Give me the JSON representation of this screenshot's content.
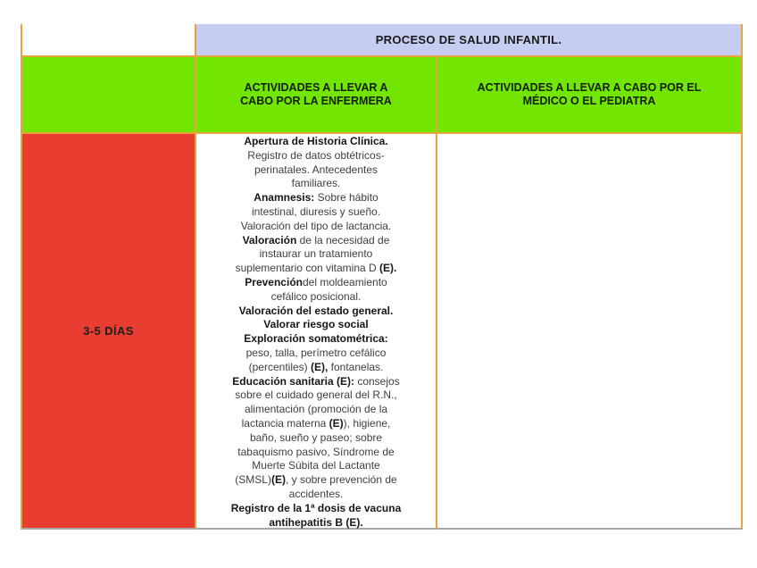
{
  "colors": {
    "table_border": "#e8a43c",
    "bottom_border": "#a8a8a8",
    "title_bg": "#c7cdf0",
    "subheader_bg": "#72e502",
    "row_label_bg": "#e83d30",
    "body_text": "#3e3e3e",
    "bold_text": "#161616"
  },
  "header": {
    "title": "PROCESO DE SALUD INFANTIL."
  },
  "columns": {
    "nurse_label": "ACTIVIDADES A LLEVAR A\nCABO POR LA ENFERMERA",
    "doctor_label": "ACTIVIDADES A LLEVAR A CABO POR EL\nMÉDICO O EL PEDIATRA"
  },
  "row": {
    "age_label": "3-5 DÍAS",
    "nurse_lines": [
      [
        {
          "t": "Apertura de Historia Clínica.",
          "b": true
        }
      ],
      [
        {
          "t": "Registro de datos obtétricos-",
          "b": false
        }
      ],
      [
        {
          "t": "perinatales. Antecedentes",
          "b": false
        }
      ],
      [
        {
          "t": "familiares.",
          "b": false
        }
      ],
      [
        {
          "t": "Anamnesis:",
          "b": true
        },
        {
          "t": " Sobre hábito",
          "b": false
        }
      ],
      [
        {
          "t": "intestinal, diuresis y sueño.",
          "b": false
        }
      ],
      [
        {
          "t": "Valoración del tipo de lactancia.",
          "b": false
        }
      ],
      [
        {
          "t": "Valoración",
          "b": true
        },
        {
          "t": " de la necesidad de",
          "b": false
        }
      ],
      [
        {
          "t": "instaurar un tratamiento",
          "b": false
        }
      ],
      [
        {
          "t": "suplementario con vitamina D ",
          "b": false
        },
        {
          "t": "(E).",
          "b": true
        }
      ],
      [
        {
          "t": "Prevención",
          "b": true
        },
        {
          "t": "del moldeamiento",
          "b": false
        }
      ],
      [
        {
          "t": "cefálico posicional.",
          "b": false
        }
      ],
      [
        {
          "t": "Valoración del estado general.",
          "b": true
        }
      ],
      [
        {
          "t": "Valorar riesgo social",
          "b": true
        }
      ],
      [
        {
          "t": "Exploración somatométrica:",
          "b": true
        }
      ],
      [
        {
          "t": "peso, talla, perímetro cefálico",
          "b": false
        }
      ],
      [
        {
          "t": "(percentiles) ",
          "b": false
        },
        {
          "t": "(E),",
          "b": true
        },
        {
          "t": " fontanelas.",
          "b": false
        }
      ],
      [
        {
          "t": "Educación sanitaria (E):",
          "b": true
        },
        {
          "t": " consejos",
          "b": false
        }
      ],
      [
        {
          "t": "sobre el cuidado general del R.N.,",
          "b": false
        }
      ],
      [
        {
          "t": "alimentación (promoción de la",
          "b": false
        }
      ],
      [
        {
          "t": "lactancia materna ",
          "b": false
        },
        {
          "t": "(E)",
          "b": true
        },
        {
          "t": "), higiene,",
          "b": false
        }
      ],
      [
        {
          "t": "baño, sueño y paseo; sobre",
          "b": false
        }
      ],
      [
        {
          "t": "tabaquismo pasivo, Síndrome de",
          "b": false
        }
      ],
      [
        {
          "t": "Muerte Súbita del Lactante",
          "b": false
        }
      ],
      [
        {
          "t": "(SMSL)",
          "b": false
        },
        {
          "t": "(E)",
          "b": true
        },
        {
          "t": ", y sobre prevención de",
          "b": false
        }
      ],
      [
        {
          "t": "accidentes.",
          "b": false
        }
      ],
      [
        {
          "t": "Registro de la 1ª dosis de vacuna",
          "b": true
        }
      ],
      [
        {
          "t": "antihepatitis B (E).",
          "b": true
        }
      ]
    ],
    "doctor_lines": []
  }
}
